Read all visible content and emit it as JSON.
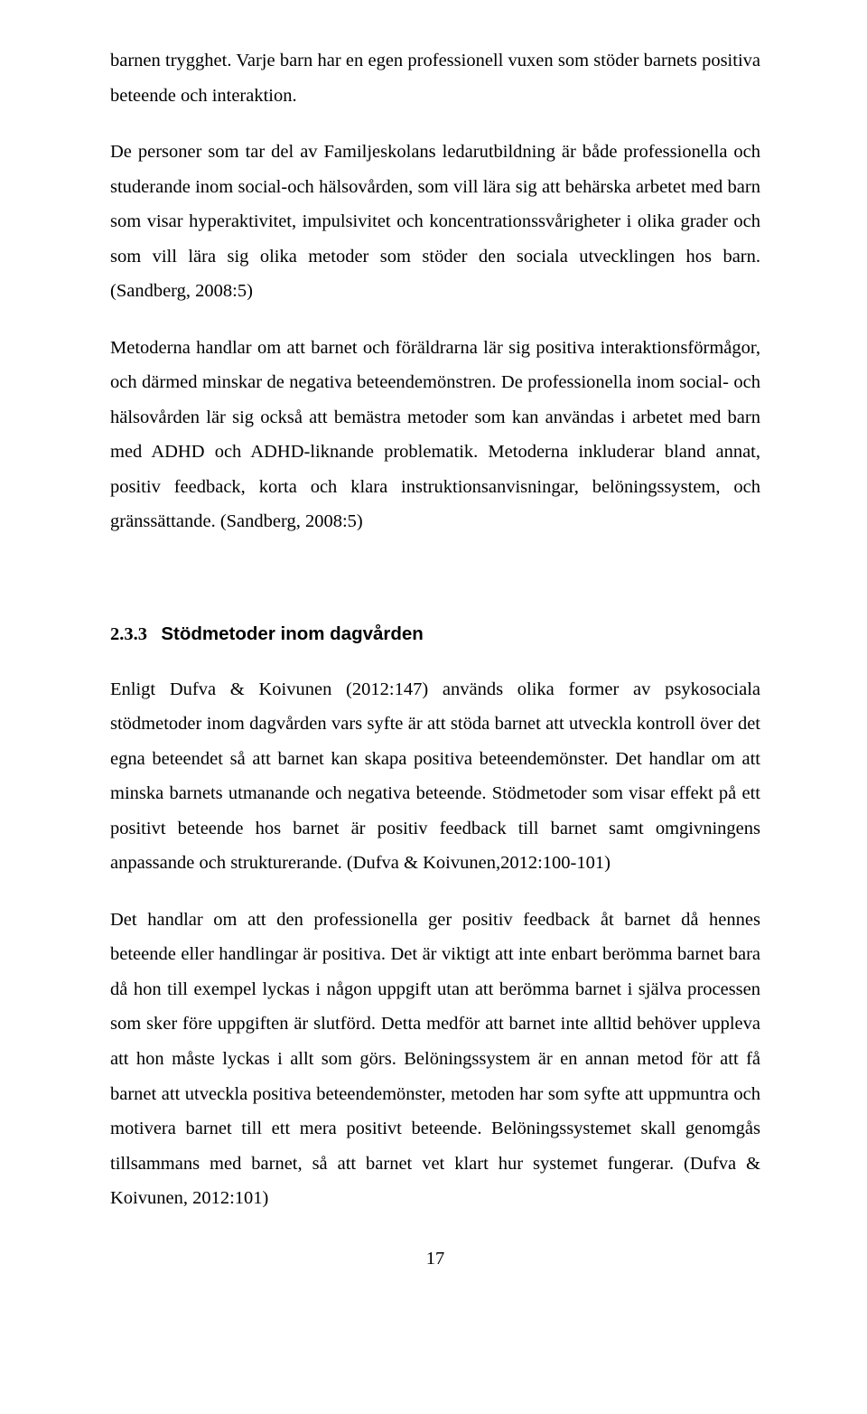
{
  "paragraphs": {
    "p1": "barnen trygghet. Varje barn har en egen professionell vuxen som stöder barnets positiva beteende och interaktion.",
    "p2": "De personer som tar del av Familjeskolans ledarutbildning är både professionella och studerande inom social-och hälsovården, som vill lära sig att behärska arbetet med barn som visar hyperaktivitet, impulsivitet och koncentrationssvårigheter i olika grader och som vill lära sig olika metoder som stöder den sociala utvecklingen hos barn. (Sandberg, 2008:5)",
    "p3": "Metoderna handlar om att barnet och föräldrarna lär sig positiva interaktionsförmågor, och därmed minskar de negativa beteendemönstren. De professionella inom social- och hälsovården lär sig också att bemästra metoder som kan användas i arbetet med barn med ADHD och ADHD-liknande problematik. Metoderna inkluderar bland annat, positiv feedback, korta och klara instruktionsanvisningar, belöningssystem, och gränssättande. (Sandberg, 2008:5)",
    "p4": "Enligt Dufva & Koivunen (2012:147) används olika former av psykosociala stödmetoder inom dagvården vars syfte är att stöda barnet att utveckla kontroll över det egna beteendet så att barnet kan skapa positiva beteendemönster. Det handlar om att minska barnets utmanande och negativa beteende. Stödmetoder som visar effekt på ett positivt beteende hos barnet är positiv feedback till barnet samt omgivningens anpassande och strukturerande. (Dufva & Koivunen,2012:100-101)",
    "p5": "Det handlar om att den professionella ger positiv feedback åt barnet då hennes beteende eller handlingar är positiva. Det är viktigt att inte enbart berömma barnet bara då hon till exempel lyckas i någon uppgift utan att berömma barnet i själva processen som sker före uppgiften är slutförd. Detta medför att barnet inte alltid behöver uppleva att hon måste lyckas i allt som görs. Belöningssystem är en annan metod för att få barnet att utveckla positiva beteendemönster, metoden har som syfte att uppmuntra och motivera barnet till ett mera positivt beteende.  Belöningssystemet skall genomgås tillsammans med barnet, så att barnet vet klart hur systemet fungerar. (Dufva & Koivunen, 2012:101)"
  },
  "heading": {
    "number": "2.3.3",
    "title": "Stödmetoder inom dagvården"
  },
  "page_number": "17"
}
